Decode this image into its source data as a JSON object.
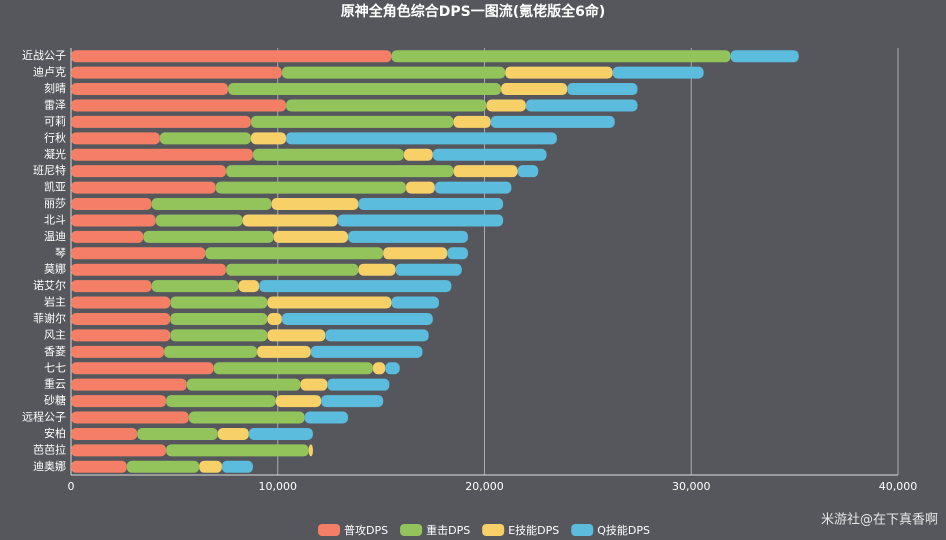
{
  "chart_data": {
    "type": "stacked-bar-horizontal",
    "title": "原神全角色综合DPS一图流(氪佬版全6命)",
    "watermark": "米游社@在下真香啊",
    "categories": [
      "近战公子",
      "迪卢克",
      "刻晴",
      "雷泽",
      "可莉",
      "行秋",
      "凝光",
      "班尼特",
      "凯亚",
      "丽莎",
      "北斗",
      "温迪",
      "琴",
      "莫娜",
      "诺艾尔",
      "岩主",
      "菲谢尔",
      "风主",
      "香菱",
      "七七",
      "重云",
      "砂糖",
      "远程公子",
      "安柏",
      "芭芭拉",
      "迪奥娜"
    ],
    "series": [
      {
        "name": "普攻DPS",
        "color": "#f47f66",
        "values": [
          15500,
          10200,
          7600,
          10400,
          8700,
          4300,
          8800,
          7500,
          7000,
          3900,
          4100,
          3500,
          6500,
          7500,
          3900,
          4800,
          4800,
          4800,
          4500,
          6900,
          5600,
          4600,
          5700,
          3200,
          4600,
          2700
        ]
      },
      {
        "name": "重击DPS",
        "color": "#93c45c",
        "values": [
          16400,
          10800,
          13200,
          9700,
          9800,
          4400,
          7300,
          11000,
          9200,
          5800,
          4200,
          6300,
          8600,
          6400,
          4200,
          4700,
          4700,
          4700,
          4500,
          7700,
          5500,
          5300,
          5600,
          3900,
          6900,
          3500
        ]
      },
      {
        "name": "E技能DPS",
        "color": "#f7d168",
        "values": [
          0,
          5200,
          3200,
          1900,
          1800,
          1700,
          1400,
          3100,
          1400,
          4200,
          4600,
          3600,
          3100,
          1800,
          1000,
          6000,
          700,
          2800,
          2600,
          600,
          1300,
          2200,
          0,
          1500,
          200,
          1100
        ]
      },
      {
        "name": "Q技能DPS",
        "color": "#5bbcde",
        "values": [
          3300,
          4400,
          3400,
          5400,
          6000,
          13100,
          5500,
          1000,
          3700,
          7000,
          8000,
          5800,
          1000,
          3200,
          9300,
          2300,
          7300,
          5000,
          5400,
          700,
          3000,
          3000,
          2100,
          3100,
          0,
          1500
        ]
      }
    ],
    "xlim": [
      0,
      40000
    ],
    "xticks": [
      0,
      {
        "value": 10000,
        "label": "10,000"
      },
      {
        "value": 20000,
        "label": "20,000"
      },
      {
        "value": 30000,
        "label": "30,000"
      },
      {
        "value": 40000,
        "label": "40,000"
      }
    ],
    "grid": true
  }
}
